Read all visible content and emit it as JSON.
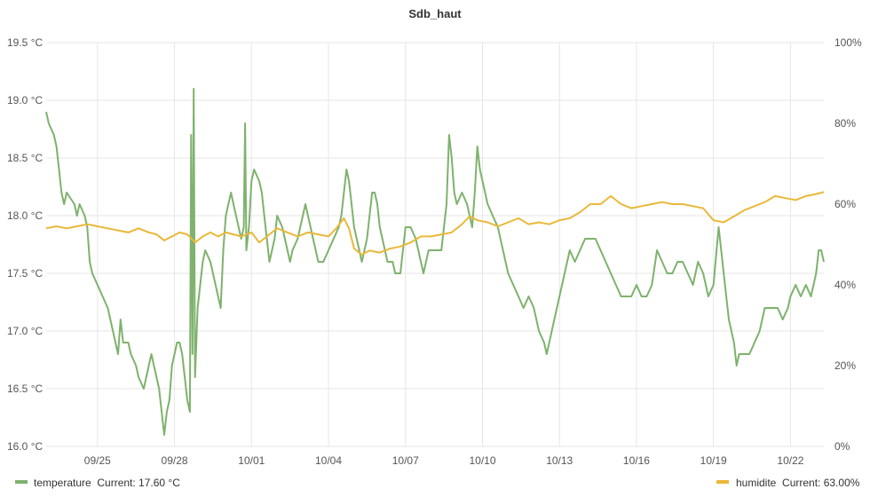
{
  "chart_data": {
    "type": "line",
    "title": "Sdb_haut",
    "xlabel": "",
    "ylabel_left": "",
    "ylabel_right": "",
    "y_left": {
      "lim": [
        16.0,
        19.5
      ],
      "ticks": [
        16.0,
        16.5,
        17.0,
        17.5,
        18.0,
        18.5,
        19.0,
        19.5
      ],
      "tick_labels": [
        "16.0 °C",
        "16.5 °C",
        "17.0 °C",
        "17.5 °C",
        "18.0 °C",
        "18.5 °C",
        "19.0 °C",
        "19.5 °C"
      ]
    },
    "y_right": {
      "lim": [
        0,
        100
      ],
      "ticks": [
        0,
        20,
        40,
        60,
        80,
        100
      ],
      "tick_labels": [
        "0%",
        "20%",
        "40%",
        "60%",
        "80%",
        "100%"
      ]
    },
    "x": {
      "lim": [
        "09/23 06:00",
        "10/23 06:00"
      ],
      "ticks": [
        2,
        5,
        8,
        11,
        14,
        17,
        20,
        23,
        26,
        29
      ],
      "tick_labels": [
        "09/25",
        "09/28",
        "10/01",
        "10/04",
        "10/07",
        "10/10",
        "10/13",
        "10/16",
        "10/19",
        "10/22"
      ]
    },
    "grid": true,
    "legend_position": "bottom",
    "series": [
      {
        "name": "temperature",
        "axis": "left",
        "color": "#7eb26d",
        "legend_text": "temperature  Current: 17.60 °C",
        "points": [
          [
            0.0,
            18.9
          ],
          [
            0.1,
            18.8
          ],
          [
            0.3,
            18.7
          ],
          [
            0.4,
            18.6
          ],
          [
            0.5,
            18.4
          ],
          [
            0.6,
            18.2
          ],
          [
            0.7,
            18.1
          ],
          [
            0.8,
            18.2
          ],
          [
            1.1,
            18.1
          ],
          [
            1.2,
            18.0
          ],
          [
            1.3,
            18.1
          ],
          [
            1.5,
            18.0
          ],
          [
            1.6,
            17.9
          ],
          [
            1.7,
            17.6
          ],
          [
            1.8,
            17.5
          ],
          [
            2.0,
            17.4
          ],
          [
            2.2,
            17.3
          ],
          [
            2.4,
            17.2
          ],
          [
            2.6,
            17.0
          ],
          [
            2.7,
            16.9
          ],
          [
            2.8,
            16.8
          ],
          [
            2.9,
            17.1
          ],
          [
            3.0,
            16.9
          ],
          [
            3.2,
            16.9
          ],
          [
            3.3,
            16.8
          ],
          [
            3.5,
            16.7
          ],
          [
            3.6,
            16.6
          ],
          [
            3.8,
            16.5
          ],
          [
            3.9,
            16.6
          ],
          [
            4.0,
            16.7
          ],
          [
            4.1,
            16.8
          ],
          [
            4.2,
            16.7
          ],
          [
            4.3,
            16.6
          ],
          [
            4.4,
            16.5
          ],
          [
            4.5,
            16.3
          ],
          [
            4.6,
            16.1
          ],
          [
            4.7,
            16.3
          ],
          [
            4.8,
            16.4
          ],
          [
            4.9,
            16.7
          ],
          [
            5.0,
            16.8
          ],
          [
            5.1,
            16.9
          ],
          [
            5.2,
            16.9
          ],
          [
            5.3,
            16.8
          ],
          [
            5.4,
            16.6
          ],
          [
            5.5,
            16.4
          ],
          [
            5.6,
            16.3
          ],
          [
            5.65,
            18.7
          ],
          [
            5.7,
            16.8
          ],
          [
            5.75,
            19.1
          ],
          [
            5.8,
            16.6
          ],
          [
            5.9,
            17.2
          ],
          [
            6.0,
            17.4
          ],
          [
            6.1,
            17.6
          ],
          [
            6.2,
            17.7
          ],
          [
            6.4,
            17.6
          ],
          [
            6.5,
            17.5
          ],
          [
            6.6,
            17.4
          ],
          [
            6.7,
            17.3
          ],
          [
            6.8,
            17.2
          ],
          [
            6.9,
            17.7
          ],
          [
            7.0,
            18.0
          ],
          [
            7.1,
            18.1
          ],
          [
            7.2,
            18.2
          ],
          [
            7.3,
            18.1
          ],
          [
            7.4,
            18.0
          ],
          [
            7.5,
            17.9
          ],
          [
            7.6,
            17.8
          ],
          [
            7.7,
            17.9
          ],
          [
            7.75,
            18.8
          ],
          [
            7.8,
            17.7
          ],
          [
            7.9,
            17.9
          ],
          [
            8.0,
            18.3
          ],
          [
            8.1,
            18.4
          ],
          [
            8.3,
            18.3
          ],
          [
            8.4,
            18.2
          ],
          [
            8.5,
            18.0
          ],
          [
            8.6,
            17.8
          ],
          [
            8.7,
            17.6
          ],
          [
            8.8,
            17.7
          ],
          [
            8.9,
            17.8
          ],
          [
            9.0,
            18.0
          ],
          [
            9.2,
            17.9
          ],
          [
            9.3,
            17.8
          ],
          [
            9.4,
            17.7
          ],
          [
            9.5,
            17.6
          ],
          [
            9.6,
            17.7
          ],
          [
            9.8,
            17.8
          ],
          [
            9.9,
            17.9
          ],
          [
            10.0,
            18.0
          ],
          [
            10.1,
            18.1
          ],
          [
            10.2,
            18.0
          ],
          [
            10.3,
            17.9
          ],
          [
            10.4,
            17.8
          ],
          [
            10.5,
            17.7
          ],
          [
            10.6,
            17.6
          ],
          [
            10.8,
            17.6
          ],
          [
            11.0,
            17.7
          ],
          [
            11.2,
            17.8
          ],
          [
            11.4,
            17.9
          ],
          [
            11.5,
            18.0
          ],
          [
            11.6,
            18.2
          ],
          [
            11.7,
            18.4
          ],
          [
            11.8,
            18.3
          ],
          [
            11.9,
            18.1
          ],
          [
            12.0,
            17.9
          ],
          [
            12.1,
            17.8
          ],
          [
            12.2,
            17.7
          ],
          [
            12.3,
            17.6
          ],
          [
            12.5,
            17.8
          ],
          [
            12.6,
            18.0
          ],
          [
            12.7,
            18.2
          ],
          [
            12.8,
            18.2
          ],
          [
            12.9,
            18.1
          ],
          [
            13.0,
            17.9
          ],
          [
            13.1,
            17.8
          ],
          [
            13.2,
            17.7
          ],
          [
            13.3,
            17.6
          ],
          [
            13.5,
            17.6
          ],
          [
            13.6,
            17.5
          ],
          [
            13.8,
            17.5
          ],
          [
            14.0,
            17.9
          ],
          [
            14.2,
            17.9
          ],
          [
            14.4,
            17.8
          ],
          [
            14.5,
            17.7
          ],
          [
            14.6,
            17.6
          ],
          [
            14.7,
            17.5
          ],
          [
            14.8,
            17.6
          ],
          [
            14.9,
            17.7
          ],
          [
            15.0,
            17.7
          ],
          [
            15.4,
            17.7
          ],
          [
            15.5,
            17.9
          ],
          [
            15.6,
            18.1
          ],
          [
            15.7,
            18.7
          ],
          [
            15.8,
            18.5
          ],
          [
            15.9,
            18.2
          ],
          [
            16.0,
            18.1
          ],
          [
            16.2,
            18.2
          ],
          [
            16.4,
            18.1
          ],
          [
            16.5,
            18.0
          ],
          [
            16.6,
            17.9
          ],
          [
            16.7,
            18.2
          ],
          [
            16.8,
            18.6
          ],
          [
            16.9,
            18.4
          ],
          [
            17.0,
            18.3
          ],
          [
            17.2,
            18.1
          ],
          [
            17.4,
            18.0
          ],
          [
            17.6,
            17.9
          ],
          [
            17.8,
            17.7
          ],
          [
            18.0,
            17.5
          ],
          [
            18.2,
            17.4
          ],
          [
            18.4,
            17.3
          ],
          [
            18.6,
            17.2
          ],
          [
            18.8,
            17.3
          ],
          [
            19.0,
            17.2
          ],
          [
            19.1,
            17.1
          ],
          [
            19.2,
            17.0
          ],
          [
            19.4,
            16.9
          ],
          [
            19.5,
            16.8
          ],
          [
            19.6,
            16.9
          ],
          [
            19.8,
            17.1
          ],
          [
            20.0,
            17.3
          ],
          [
            20.2,
            17.5
          ],
          [
            20.4,
            17.7
          ],
          [
            20.6,
            17.6
          ],
          [
            20.8,
            17.7
          ],
          [
            21.0,
            17.8
          ],
          [
            21.2,
            17.8
          ],
          [
            21.4,
            17.8
          ],
          [
            21.6,
            17.7
          ],
          [
            21.8,
            17.6
          ],
          [
            22.0,
            17.5
          ],
          [
            22.2,
            17.4
          ],
          [
            22.4,
            17.3
          ],
          [
            22.6,
            17.3
          ],
          [
            22.8,
            17.3
          ],
          [
            23.0,
            17.4
          ],
          [
            23.2,
            17.3
          ],
          [
            23.4,
            17.3
          ],
          [
            23.6,
            17.4
          ],
          [
            23.8,
            17.7
          ],
          [
            24.0,
            17.6
          ],
          [
            24.2,
            17.5
          ],
          [
            24.4,
            17.5
          ],
          [
            24.6,
            17.6
          ],
          [
            24.8,
            17.6
          ],
          [
            25.0,
            17.5
          ],
          [
            25.2,
            17.4
          ],
          [
            25.4,
            17.6
          ],
          [
            25.6,
            17.5
          ],
          [
            25.8,
            17.3
          ],
          [
            26.0,
            17.4
          ],
          [
            26.2,
            17.9
          ],
          [
            26.3,
            17.7
          ],
          [
            26.4,
            17.5
          ],
          [
            26.5,
            17.3
          ],
          [
            26.6,
            17.1
          ],
          [
            26.8,
            16.9
          ],
          [
            26.9,
            16.7
          ],
          [
            27.0,
            16.8
          ],
          [
            27.2,
            16.8
          ],
          [
            27.4,
            16.8
          ],
          [
            27.6,
            16.9
          ],
          [
            27.8,
            17.0
          ],
          [
            28.0,
            17.2
          ],
          [
            28.2,
            17.2
          ],
          [
            28.5,
            17.2
          ],
          [
            28.7,
            17.1
          ],
          [
            28.9,
            17.2
          ],
          [
            29.0,
            17.3
          ],
          [
            29.2,
            17.4
          ],
          [
            29.4,
            17.3
          ],
          [
            29.6,
            17.4
          ],
          [
            29.8,
            17.3
          ],
          [
            29.9,
            17.4
          ],
          [
            30.0,
            17.5
          ],
          [
            30.1,
            17.7
          ],
          [
            30.2,
            17.7
          ],
          [
            30.3,
            17.6
          ]
        ]
      },
      {
        "name": "humidite",
        "axis": "right",
        "color": "#eab839",
        "legend_text": "humidite  Current: 63.00%",
        "points": [
          [
            0.0,
            54.0
          ],
          [
            0.4,
            54.5
          ],
          [
            0.8,
            54.0
          ],
          [
            1.2,
            54.5
          ],
          [
            1.6,
            55.0
          ],
          [
            2.0,
            54.5
          ],
          [
            2.4,
            54.0
          ],
          [
            2.8,
            53.5
          ],
          [
            3.2,
            53.0
          ],
          [
            3.6,
            54.0
          ],
          [
            4.0,
            53.0
          ],
          [
            4.3,
            52.5
          ],
          [
            4.6,
            51.0
          ],
          [
            4.9,
            52.0
          ],
          [
            5.2,
            53.0
          ],
          [
            5.5,
            52.5
          ],
          [
            5.8,
            50.5
          ],
          [
            6.1,
            52.0
          ],
          [
            6.4,
            53.0
          ],
          [
            6.7,
            52.0
          ],
          [
            7.0,
            53.0
          ],
          [
            7.3,
            52.5
          ],
          [
            7.6,
            52.0
          ],
          [
            8.0,
            53.0
          ],
          [
            8.3,
            50.5
          ],
          [
            8.6,
            52.0
          ],
          [
            9.0,
            54.0
          ],
          [
            9.4,
            53.0
          ],
          [
            9.8,
            52.0
          ],
          [
            10.2,
            53.0
          ],
          [
            10.6,
            52.5
          ],
          [
            11.0,
            52.0
          ],
          [
            11.3,
            54.0
          ],
          [
            11.6,
            56.5
          ],
          [
            11.8,
            54.0
          ],
          [
            12.0,
            49.0
          ],
          [
            12.3,
            47.5
          ],
          [
            12.6,
            48.5
          ],
          [
            13.0,
            48.0
          ],
          [
            13.4,
            49.0
          ],
          [
            13.8,
            49.5
          ],
          [
            14.2,
            50.5
          ],
          [
            14.6,
            52.0
          ],
          [
            15.0,
            52.0
          ],
          [
            15.4,
            52.5
          ],
          [
            15.8,
            53.0
          ],
          [
            16.2,
            55.0
          ],
          [
            16.5,
            57.0
          ],
          [
            16.8,
            56.0
          ],
          [
            17.2,
            55.5
          ],
          [
            17.6,
            54.5
          ],
          [
            18.0,
            55.5
          ],
          [
            18.4,
            56.5
          ],
          [
            18.8,
            55.0
          ],
          [
            19.2,
            55.5
          ],
          [
            19.6,
            55.0
          ],
          [
            20.0,
            56.0
          ],
          [
            20.4,
            56.5
          ],
          [
            20.8,
            58.0
          ],
          [
            21.2,
            60.0
          ],
          [
            21.6,
            60.0
          ],
          [
            22.0,
            62.0
          ],
          [
            22.4,
            60.0
          ],
          [
            22.8,
            59.0
          ],
          [
            23.2,
            59.5
          ],
          [
            23.6,
            60.0
          ],
          [
            24.0,
            60.5
          ],
          [
            24.4,
            60.0
          ],
          [
            24.8,
            60.0
          ],
          [
            25.2,
            59.5
          ],
          [
            25.6,
            59.0
          ],
          [
            26.0,
            56.0
          ],
          [
            26.4,
            55.5
          ],
          [
            26.8,
            57.0
          ],
          [
            27.2,
            58.5
          ],
          [
            27.6,
            59.5
          ],
          [
            28.0,
            60.5
          ],
          [
            28.4,
            62.0
          ],
          [
            28.8,
            61.5
          ],
          [
            29.2,
            61.0
          ],
          [
            29.6,
            62.0
          ],
          [
            30.0,
            62.5
          ],
          [
            30.3,
            63.0
          ]
        ]
      }
    ]
  }
}
